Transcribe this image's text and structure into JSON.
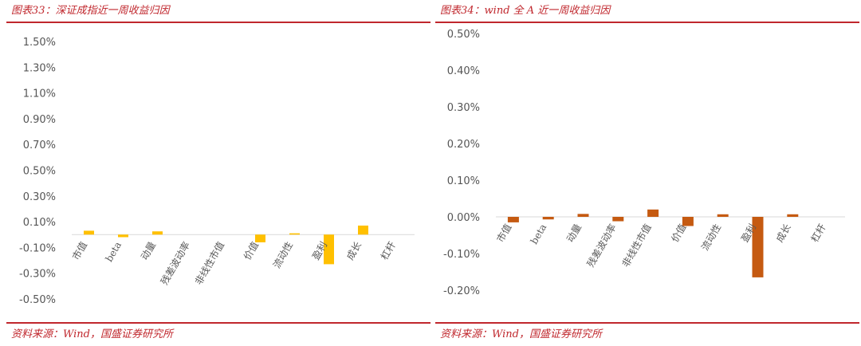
{
  "chart_data": [
    {
      "type": "bar",
      "title": "图表33：深证成指近一周收益归因",
      "source": "资料来源：Wind，国盛证券研究所",
      "categories": [
        "市值",
        "beta",
        "动量",
        "残差波动率",
        "非线性市值",
        "价值",
        "流动性",
        "盈利",
        "成长",
        "杠杆"
      ],
      "values": [
        0.03,
        -0.02,
        0.025,
        0.0,
        0.0,
        -0.06,
        0.01,
        -0.23,
        0.07,
        0.0
      ],
      "yticks": [
        "1.50%",
        "1.30%",
        "1.10%",
        "0.90%",
        "0.70%",
        "0.50%",
        "0.30%",
        "0.10%",
        "-0.10%",
        "-0.30%",
        "-0.50%"
      ],
      "ylim": [
        -0.5,
        1.5
      ],
      "color": "#ffc000",
      "grid": false
    },
    {
      "type": "bar",
      "title": "图表34：wind 全 A 近一周收益归因",
      "source": "资料来源：Wind，国盛证券研究所",
      "categories": [
        "市值",
        "beta",
        "动量",
        "残差波动率",
        "非线性市值",
        "价值",
        "流动性",
        "盈利",
        "成长",
        "杠杆"
      ],
      "values": [
        -0.015,
        -0.007,
        0.008,
        -0.012,
        0.02,
        -0.025,
        0.007,
        -0.165,
        0.007,
        0.0
      ],
      "yticks": [
        "0.50%",
        "0.40%",
        "0.30%",
        "0.20%",
        "0.10%",
        "0.00%",
        "-0.10%",
        "-0.20%"
      ],
      "ylim": [
        -0.2,
        0.5
      ],
      "color": "#c55a11",
      "grid": false
    }
  ]
}
